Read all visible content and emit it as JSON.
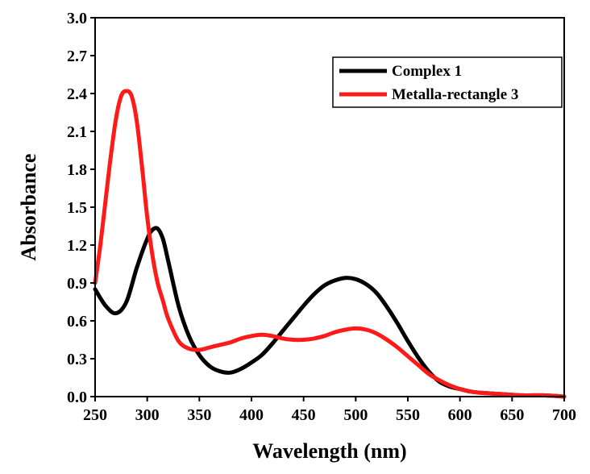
{
  "chart_data": {
    "type": "line",
    "xlabel": "Wavelength (nm)",
    "ylabel": "Absorbance",
    "xlim": [
      250,
      700
    ],
    "ylim": [
      0.0,
      3.0
    ],
    "x_ticks": [
      "250",
      "300",
      "350",
      "400",
      "450",
      "500",
      "550",
      "600",
      "650",
      "700"
    ],
    "y_ticks": [
      "0.0",
      "0.3",
      "0.6",
      "0.9",
      "1.2",
      "1.5",
      "1.8",
      "2.1",
      "2.4",
      "2.7",
      "3.0"
    ],
    "grid": false,
    "legend_position": "top-right",
    "series": [
      {
        "name": "Complex 1",
        "color": "#000000",
        "x": [
          250,
          260,
          270,
          280,
          290,
          300,
          305,
          310,
          315,
          320,
          330,
          340,
          350,
          360,
          370,
          380,
          390,
          400,
          410,
          420,
          430,
          440,
          450,
          460,
          470,
          480,
          490,
          500,
          510,
          520,
          530,
          540,
          550,
          560,
          570,
          580,
          590,
          600,
          610,
          620,
          640,
          660,
          680,
          700
        ],
        "y": [
          0.85,
          0.72,
          0.66,
          0.75,
          1.02,
          1.25,
          1.32,
          1.33,
          1.25,
          1.08,
          0.72,
          0.48,
          0.33,
          0.24,
          0.2,
          0.19,
          0.22,
          0.27,
          0.33,
          0.42,
          0.52,
          0.62,
          0.72,
          0.81,
          0.88,
          0.92,
          0.94,
          0.93,
          0.89,
          0.82,
          0.71,
          0.58,
          0.44,
          0.31,
          0.2,
          0.12,
          0.08,
          0.06,
          0.04,
          0.03,
          0.02,
          0.01,
          0.01,
          0.0
        ]
      },
      {
        "name": "Metalla-rectangle 3",
        "color": "#ff1a1a",
        "x": [
          250,
          255,
          260,
          265,
          270,
          275,
          280,
          285,
          290,
          295,
          300,
          305,
          310,
          315,
          320,
          330,
          340,
          350,
          360,
          370,
          380,
          390,
          400,
          410,
          420,
          430,
          440,
          450,
          460,
          470,
          480,
          490,
          500,
          510,
          520,
          530,
          540,
          550,
          560,
          570,
          580,
          590,
          600,
          610,
          620,
          640,
          660,
          680,
          700
        ],
        "y": [
          0.9,
          1.2,
          1.55,
          1.9,
          2.2,
          2.38,
          2.42,
          2.38,
          2.18,
          1.82,
          1.42,
          1.12,
          0.9,
          0.76,
          0.62,
          0.44,
          0.38,
          0.37,
          0.39,
          0.41,
          0.43,
          0.46,
          0.48,
          0.49,
          0.48,
          0.46,
          0.45,
          0.45,
          0.46,
          0.48,
          0.51,
          0.53,
          0.54,
          0.53,
          0.5,
          0.45,
          0.39,
          0.32,
          0.25,
          0.18,
          0.13,
          0.09,
          0.06,
          0.04,
          0.03,
          0.02,
          0.01,
          0.01,
          0.0
        ]
      }
    ]
  }
}
